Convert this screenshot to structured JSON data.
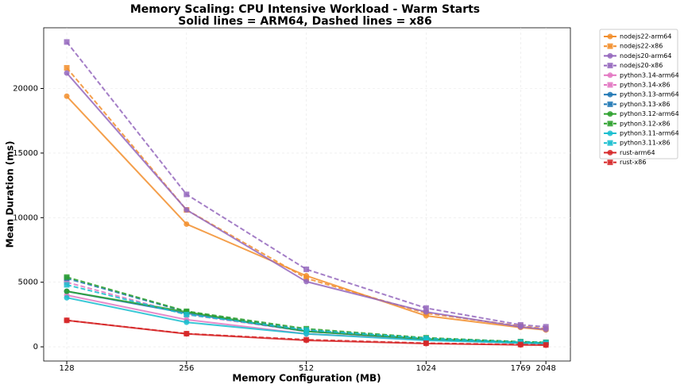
{
  "chart_data": {
    "type": "line",
    "title": "Memory Scaling: CPU Intensive Workload - Warm Starts",
    "subtitle": "Solid lines = ARM64, Dashed lines = x86",
    "x_label": "Memory Configuration (MB)",
    "y_label": "Mean Duration (ms)",
    "x": [
      128,
      256,
      512,
      1024,
      1769,
      2048
    ],
    "xscale": "log",
    "xlim": [
      112,
      2360
    ],
    "xticks": [
      128,
      256,
      512,
      1024,
      1769,
      2048
    ],
    "ylim": [
      -1100,
      24700
    ],
    "yticks": [
      0,
      5000,
      10000,
      15000,
      20000
    ],
    "grid": true,
    "legend": "outside upper right",
    "series": [
      {
        "name": "nodejs22-arm64",
        "color": "#f28e2b",
        "linestyle": "solid",
        "marker": "circle",
        "values": [
          19400,
          9500,
          5500,
          2400,
          1500,
          1300
        ]
      },
      {
        "name": "nodejs22-x86",
        "color": "#f28e2b",
        "linestyle": "dashed",
        "marker": "square",
        "values": [
          21600,
          10600,
          5300,
          2600,
          1600,
          1400
        ]
      },
      {
        "name": "nodejs20-arm64",
        "color": "#9467bd",
        "linestyle": "solid",
        "marker": "circle",
        "values": [
          21200,
          10600,
          5050,
          2700,
          1550,
          1350
        ]
      },
      {
        "name": "nodejs20-x86",
        "color": "#9467bd",
        "linestyle": "dashed",
        "marker": "square",
        "values": [
          23600,
          11800,
          6000,
          3000,
          1700,
          1550
        ]
      },
      {
        "name": "python3.14-arm64",
        "color": "#e377c2",
        "linestyle": "solid",
        "marker": "circle",
        "values": [
          4000,
          2100,
          1000,
          550,
          300,
          250
        ]
      },
      {
        "name": "python3.14-x86",
        "color": "#e377c2",
        "linestyle": "dashed",
        "marker": "square",
        "values": [
          5000,
          2500,
          1200,
          600,
          350,
          300
        ]
      },
      {
        "name": "python3.13-arm64",
        "color": "#1f77b4",
        "linestyle": "solid",
        "marker": "circle",
        "values": [
          4300,
          2600,
          1200,
          600,
          330,
          280
        ]
      },
      {
        "name": "python3.13-x86",
        "color": "#1f77b4",
        "linestyle": "dashed",
        "marker": "square",
        "values": [
          5300,
          2700,
          1300,
          650,
          380,
          330
        ]
      },
      {
        "name": "python3.12-arm64",
        "color": "#2ca02c",
        "linestyle": "solid",
        "marker": "circle",
        "values": [
          4300,
          2700,
          1200,
          600,
          330,
          300
        ]
      },
      {
        "name": "python3.12-x86",
        "color": "#2ca02c",
        "linestyle": "dashed",
        "marker": "square",
        "values": [
          5400,
          2750,
          1400,
          700,
          400,
          350
        ]
      },
      {
        "name": "python3.11-arm64",
        "color": "#17becf",
        "linestyle": "solid",
        "marker": "circle",
        "values": [
          3800,
          1900,
          1000,
          500,
          300,
          250
        ]
      },
      {
        "name": "python3.11-x86",
        "color": "#17becf",
        "linestyle": "dashed",
        "marker": "square",
        "values": [
          4800,
          2500,
          1300,
          650,
          370,
          320
        ]
      },
      {
        "name": "rust-arm64",
        "color": "#d62728",
        "linestyle": "solid",
        "marker": "circle",
        "values": [
          2050,
          1000,
          500,
          250,
          150,
          130
        ]
      },
      {
        "name": "rust-x86",
        "color": "#d62728",
        "linestyle": "dashed",
        "marker": "square",
        "values": [
          2050,
          1020,
          550,
          280,
          180,
          150
        ]
      }
    ]
  }
}
